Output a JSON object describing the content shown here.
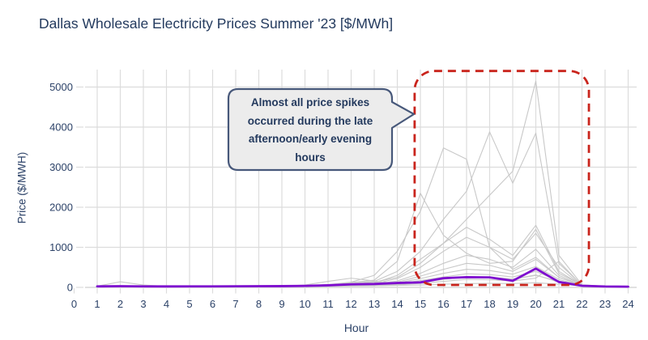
{
  "title": "Dallas Wholesale Electricity Prices Summer '23 [$/MWh]",
  "chart_data": {
    "type": "line",
    "title": "Dallas Wholesale Electricity Prices Summer '23 [$/MWh]",
    "xlabel": "Hour",
    "ylabel": "Price ($/MWH)",
    "x_range": [
      0,
      24
    ],
    "y_range": [
      0,
      5000
    ],
    "x_ticks": [
      0,
      1,
      2,
      3,
      4,
      5,
      6,
      7,
      8,
      9,
      10,
      11,
      12,
      13,
      14,
      15,
      16,
      17,
      18,
      19,
      20,
      21,
      22,
      23,
      24
    ],
    "y_ticks": [
      0,
      1000,
      2000,
      3000,
      4000,
      5000
    ],
    "grid": true,
    "legend": "none",
    "x": [
      1,
      2,
      3,
      4,
      5,
      6,
      7,
      8,
      9,
      10,
      11,
      12,
      13,
      14,
      15,
      16,
      17,
      18,
      19,
      20,
      21,
      22,
      23,
      24
    ],
    "gray_series": [
      [
        30,
        140,
        60,
        28,
        26,
        25,
        26,
        27,
        28,
        30,
        33,
        38,
        42,
        48,
        60,
        80,
        95,
        100,
        95,
        115,
        80,
        40,
        30,
        26
      ],
      [
        18,
        20,
        19,
        18,
        19,
        20,
        22,
        25,
        30,
        60,
        150,
        230,
        160,
        95,
        130,
        210,
        260,
        240,
        200,
        300,
        150,
        50,
        28,
        22
      ],
      [
        20,
        22,
        20,
        20,
        21,
        22,
        24,
        26,
        28,
        35,
        60,
        120,
        180,
        650,
        2350,
        1300,
        850,
        600,
        650,
        1450,
        350,
        60,
        30,
        24
      ],
      [
        22,
        24,
        22,
        21,
        22,
        24,
        26,
        28,
        32,
        40,
        70,
        130,
        300,
        900,
        1900,
        3480,
        3200,
        1000,
        450,
        750,
        250,
        55,
        30,
        25
      ],
      [
        20,
        22,
        21,
        20,
        21,
        23,
        25,
        27,
        30,
        38,
        55,
        100,
        150,
        400,
        900,
        1700,
        2400,
        3880,
        2600,
        3850,
        600,
        55,
        28,
        22
      ],
      [
        21,
        23,
        21,
        20,
        22,
        24,
        26,
        28,
        31,
        36,
        50,
        90,
        130,
        250,
        600,
        1100,
        1700,
        2300,
        2900,
        5150,
        800,
        65,
        30,
        24
      ],
      [
        19,
        21,
        20,
        19,
        20,
        22,
        24,
        26,
        29,
        34,
        48,
        85,
        110,
        300,
        700,
        1100,
        1500,
        1200,
        800,
        1550,
        400,
        50,
        27,
        21
      ],
      [
        18,
        20,
        19,
        18,
        19,
        21,
        23,
        25,
        28,
        32,
        45,
        70,
        95,
        220,
        500,
        900,
        1250,
        1000,
        700,
        1350,
        500,
        45,
        26,
        20
      ],
      [
        17,
        19,
        18,
        17,
        18,
        20,
        22,
        24,
        26,
        30,
        40,
        60,
        80,
        160,
        350,
        600,
        800,
        700,
        500,
        950,
        300,
        40,
        25,
        19
      ],
      [
        16,
        18,
        17,
        16,
        17,
        19,
        21,
        23,
        25,
        28,
        36,
        55,
        70,
        130,
        280,
        450,
        600,
        550,
        400,
        700,
        250,
        38,
        24,
        18
      ],
      [
        15,
        17,
        16,
        15,
        16,
        18,
        20,
        22,
        24,
        26,
        32,
        48,
        60,
        110,
        220,
        350,
        450,
        420,
        330,
        520,
        200,
        34,
        22,
        17
      ],
      [
        15,
        16,
        15,
        14,
        15,
        17,
        19,
        21,
        23,
        25,
        30,
        42,
        52,
        90,
        170,
        260,
        340,
        320,
        260,
        400,
        160,
        30,
        20,
        16
      ],
      [
        14,
        15,
        14,
        13,
        14,
        16,
        18,
        20,
        22,
        24,
        28,
        38,
        46,
        75,
        130,
        200,
        260,
        250,
        210,
        310,
        130,
        28,
        19,
        15
      ],
      [
        13,
        14,
        13,
        12,
        13,
        15,
        17,
        19,
        21,
        22,
        26,
        34,
        40,
        60,
        100,
        150,
        200,
        190,
        160,
        230,
        650,
        45,
        18,
        14
      ]
    ],
    "highlight_series": [
      25,
      30,
      26,
      24,
      25,
      26,
      28,
      30,
      32,
      38,
      52,
      75,
      85,
      110,
      125,
      230,
      255,
      250,
      165,
      470,
      135,
      40,
      22,
      18
    ],
    "highlight_box": {
      "x0": 14.75,
      "x1": 22.3,
      "y0": 60,
      "y1": 5400
    },
    "annotation": {
      "full_text": "Almost all price spikes occurred during the late afternoon/early evening hours",
      "lines": [
        "Almost all price spikes",
        "occurred during the late",
        "afternoon/early evening",
        "hours"
      ]
    },
    "colors": {
      "gray_line": "#c8c8c8",
      "highlight_line": "#7E0CCF",
      "box_dash": "#C9241C",
      "grid": "#dcdcdc",
      "axis_line": "#cfcfcf",
      "text": "#233a5e",
      "callout_fill": "#ececec",
      "callout_border": "#47587a"
    }
  }
}
